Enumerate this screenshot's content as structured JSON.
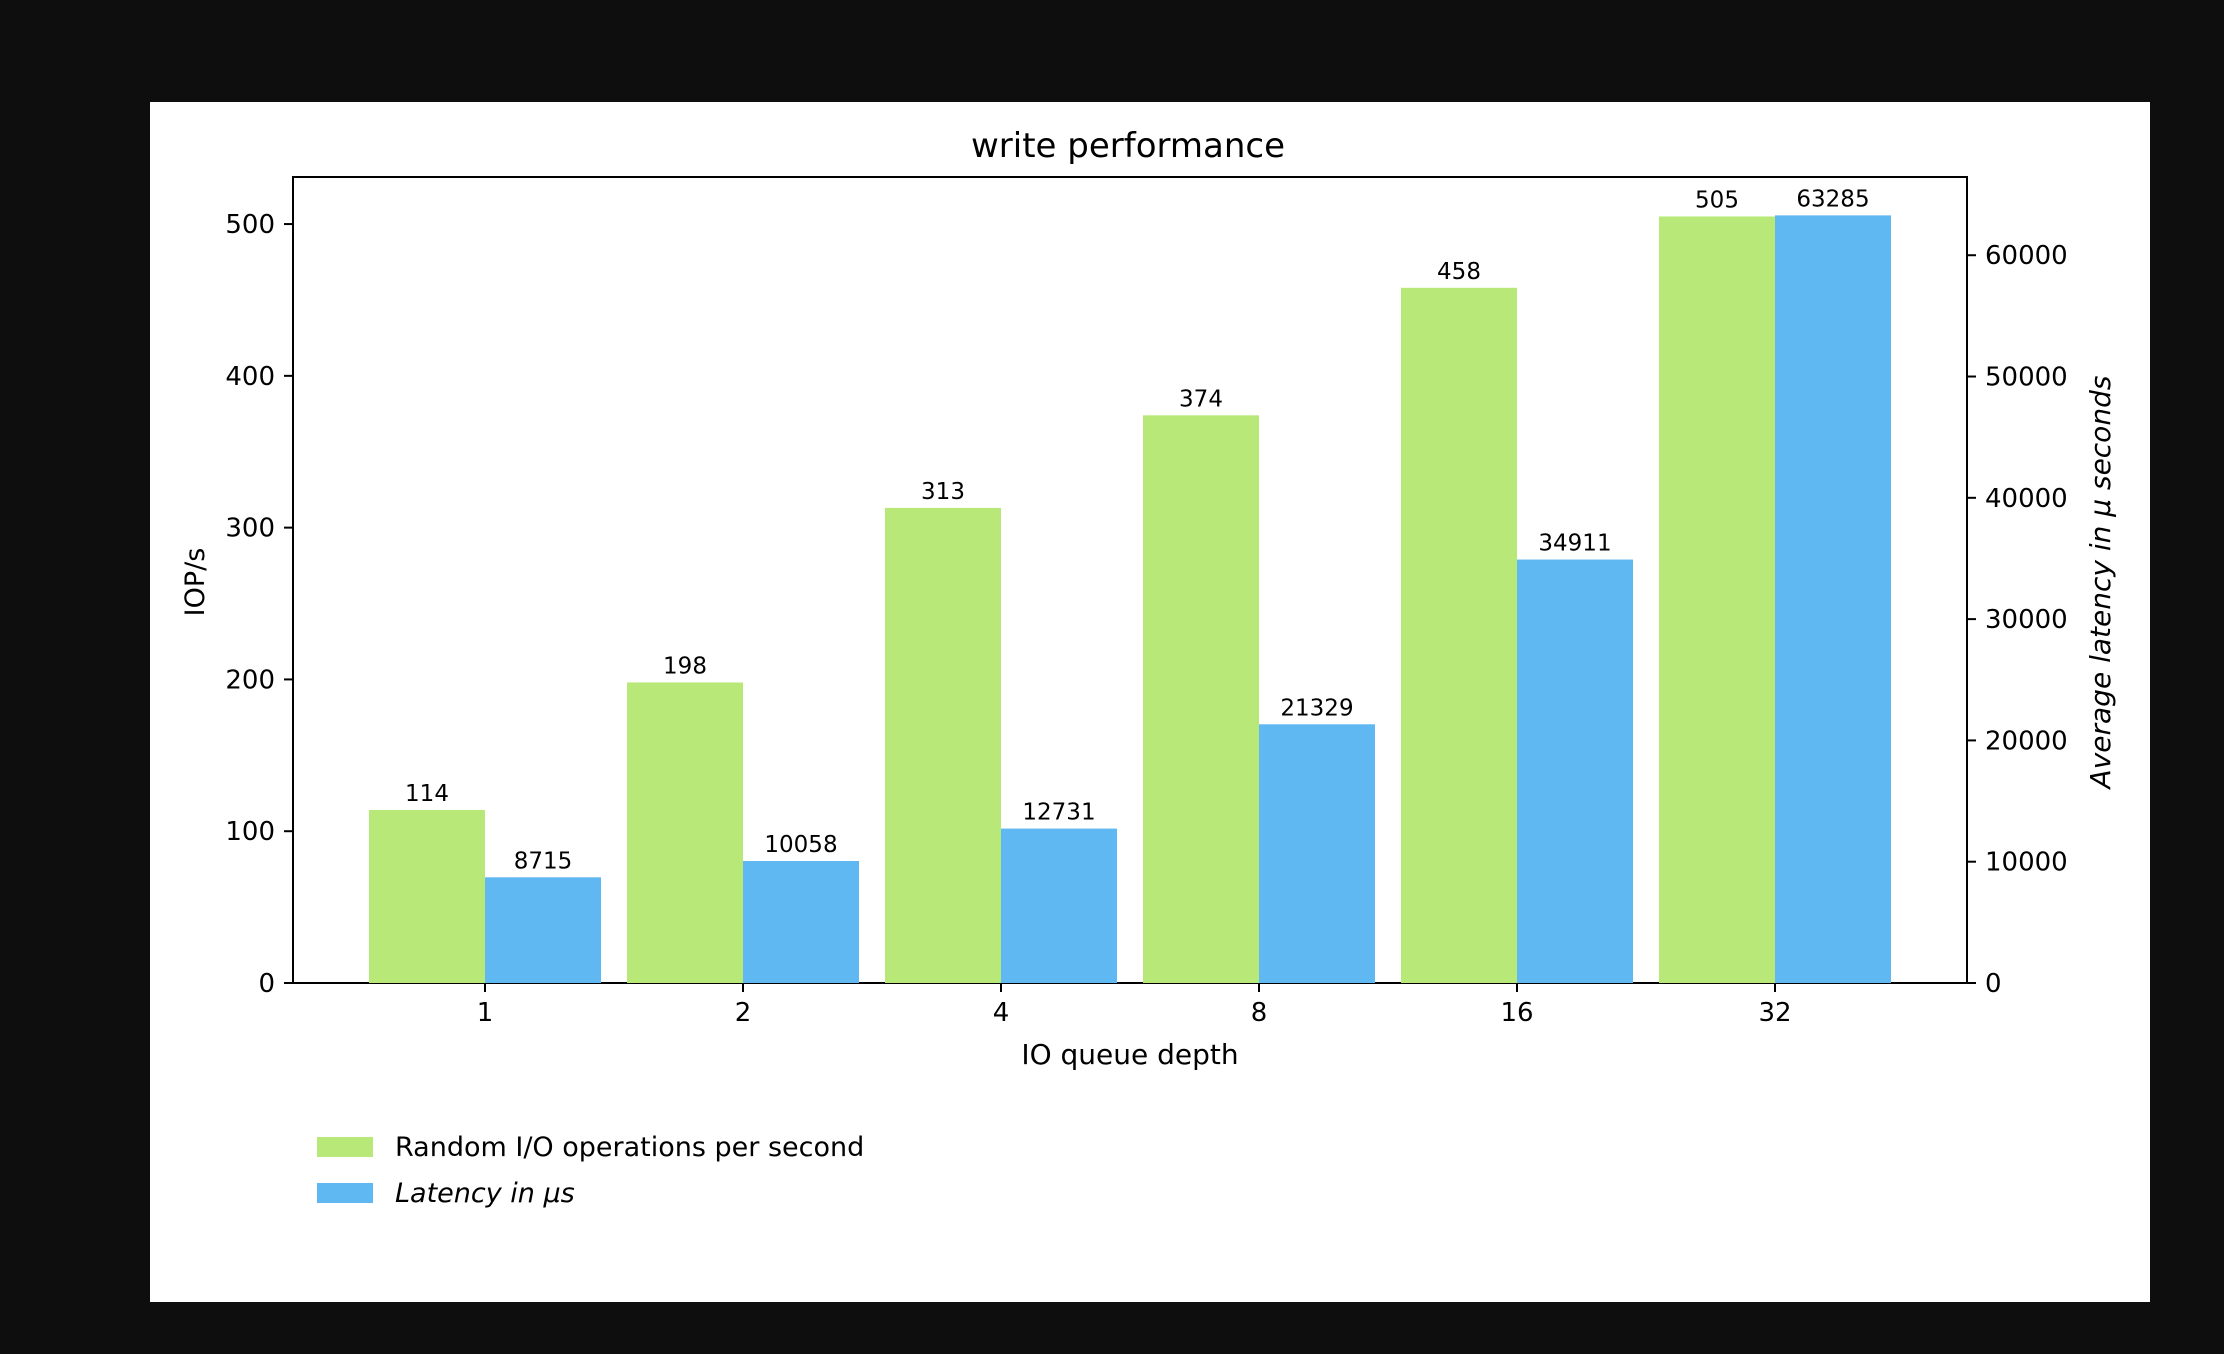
{
  "colors": {
    "background": "#0e0e0e",
    "panel": "#ffffff",
    "iops": "#b8e978",
    "latency": "#5fb8f2",
    "axis": "#000000"
  },
  "chart_data": {
    "type": "bar",
    "title": "write performance",
    "xlabel": "IO queue depth",
    "ylabel_left": "IOP/s",
    "ylabel_right": "Average latency in μ seconds",
    "categories": [
      "1",
      "2",
      "4",
      "8",
      "16",
      "32"
    ],
    "ylim_left": [
      0,
      531
    ],
    "ylim_right": [
      0,
      66449
    ],
    "yticks_left": [
      0,
      100,
      200,
      300,
      400,
      500
    ],
    "yticks_right": [
      0,
      10000,
      20000,
      30000,
      40000,
      50000,
      60000
    ],
    "series": [
      {
        "name": "Random I/O operations per second",
        "axis": "left",
        "color": "#b8e978",
        "values": [
          114,
          198,
          313,
          374,
          458,
          505
        ]
      },
      {
        "name": "Latency in μs",
        "axis": "right",
        "color": "#5fb8f2",
        "italic": true,
        "values": [
          8715,
          10058,
          12731,
          21329,
          34911,
          63285
        ]
      }
    ],
    "legend": {
      "placement": "bottom-left"
    },
    "grid": false
  }
}
